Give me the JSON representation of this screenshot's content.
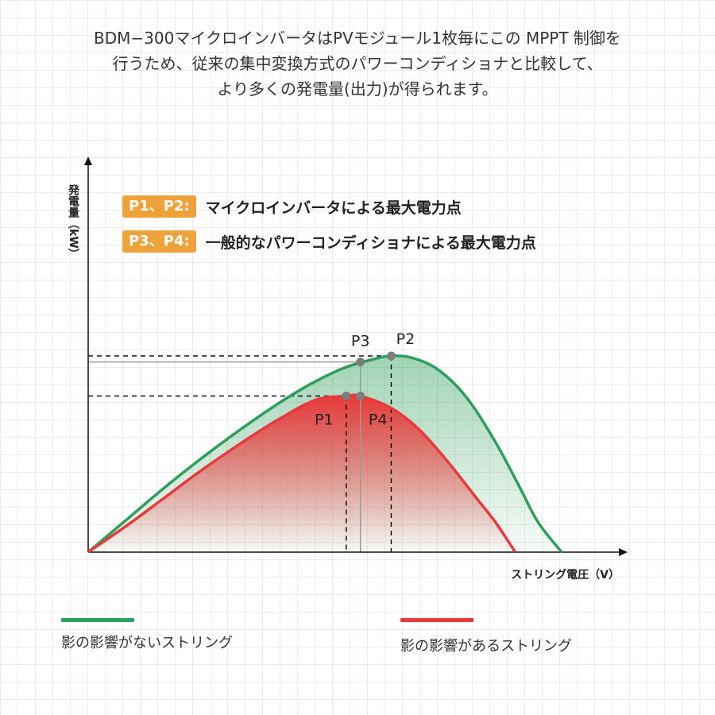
{
  "headline": {
    "line1": "BDM−300マイクロインバータはPVモジュール1枚毎にこの MPPT 制御を",
    "line2": "行うため、従来の集中変換方式のパワーコンディショナと比較して、",
    "line3": "より多くの発電量(出力)が得られます。"
  },
  "notes": [
    {
      "tag": "P1、P2:",
      "text": "マイクロインバータによる最大電力点"
    },
    {
      "tag": "P3、P4:",
      "text": "一般的なパワーコンディショナによる最大電力点"
    }
  ],
  "colors": {
    "green": "#2e9e5b",
    "red": "#e83a3a",
    "tag": "#f0a23a"
  },
  "chart_data": {
    "type": "line",
    "ylabel": "発電量（kW）",
    "xlabel": "ストリング電圧（V）",
    "xlim": [
      0,
      100
    ],
    "ylim": [
      0,
      100
    ],
    "series": [
      {
        "name": "影の影響がないストリング",
        "color": "#2e9e5b",
        "x": [
          0,
          8,
          16,
          24,
          32,
          40,
          47,
          54,
          60.5,
          64,
          68.5,
          74,
          80,
          86,
          91,
          95,
          100
        ],
        "y": [
          0,
          16,
          32,
          47,
          61,
          74,
          84,
          92,
          96.5,
          98,
          97,
          91,
          77,
          55,
          33,
          15,
          0
        ]
      },
      {
        "name": "影の影響があるストリング",
        "color": "#e83a3a",
        "x": [
          0,
          8,
          16,
          24,
          32,
          40,
          48,
          54.5,
          57.5,
          64,
          70,
          76,
          82,
          86,
          90.2
        ],
        "y": [
          0,
          13,
          27,
          41,
          54,
          66,
          76,
          78,
          78,
          72,
          61,
          45,
          27,
          15,
          0
        ]
      }
    ],
    "points": [
      {
        "label": "P1",
        "x": 54.5,
        "y": 78
      },
      {
        "label": "P2",
        "x": 64,
        "y": 98
      },
      {
        "label": "P3",
        "x": 57.5,
        "y": 95
      },
      {
        "label": "P4",
        "x": 57.5,
        "y": 78
      }
    ]
  },
  "legend": [
    {
      "label": "影の影響がないストリング",
      "color": "#2e9e5b"
    },
    {
      "label": "影の影響があるストリング",
      "color": "#e83a3a"
    }
  ]
}
